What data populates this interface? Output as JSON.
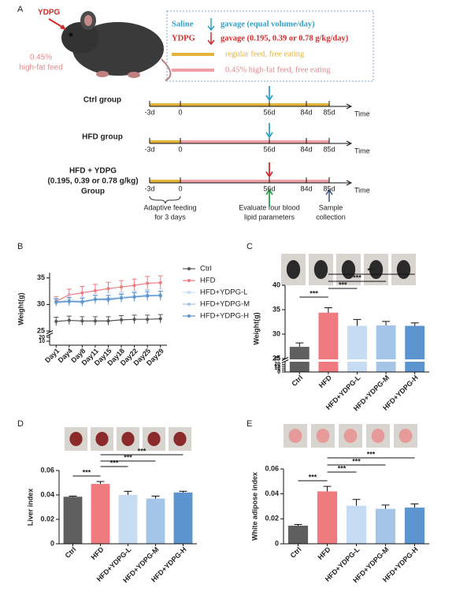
{
  "panel_a": {
    "label": "A",
    "ydpg_tag": "YDPG",
    "feed_tag": [
      "0.45%",
      "high-fat feed"
    ],
    "legend": {
      "saline": "Saline",
      "saline_text": "gavage (equal volume/day)",
      "ydpg": "YDPG",
      "ydpg_text": "gavage (0.195, 0.39 or 0.78 g/kg/day)",
      "regular": "regular feed, free eating",
      "hfd": "0.45% high-fat feed, free eating"
    },
    "groups": [
      {
        "name": [
          "Ctrl group"
        ]
      },
      {
        "name": [
          "HFD group"
        ]
      },
      {
        "name": [
          "HFD + YDPG",
          "(0.195, 0.39 or 0.78 g/kg)",
          "Group"
        ]
      }
    ],
    "timeline_ticks": [
      "-3d",
      "0",
      "56d",
      "84d",
      "85d"
    ],
    "time_label": "Time",
    "notes": [
      [
        "Adaptive feeding",
        "for 3 days"
      ],
      [
        "Evaluate four blood",
        "lipid parameters"
      ],
      [
        "Sample",
        "collection"
      ]
    ]
  },
  "chart_data": [
    {
      "type": "line",
      "label": "B",
      "ylabel": "Weight(g)",
      "categories": [
        "Day1",
        "Day4",
        "Day8",
        "Day11",
        "Day15",
        "Day18",
        "Day22",
        "Day25",
        "Day29"
      ],
      "series": [
        {
          "name": "Ctrl",
          "color": "#555555",
          "values": [
            26.8,
            27.0,
            26.9,
            26.9,
            26.9,
            27.1,
            27.2,
            27.2,
            27.3
          ],
          "errors": [
            0.8,
            0.8,
            0.8,
            0.8,
            0.8,
            0.8,
            0.8,
            0.8,
            0.8
          ]
        },
        {
          "name": "HFD",
          "color": "#ef7a80",
          "values": [
            30.6,
            31.8,
            32.2,
            32.6,
            33.0,
            33.3,
            33.6,
            34.0,
            34.1
          ],
          "errors": [
            0.9,
            1.1,
            1.2,
            1.2,
            1.2,
            1.2,
            1.2,
            1.3,
            1.3
          ]
        },
        {
          "name": "HFD+YDPG-L",
          "color": "#c6dcf2",
          "values": [
            30.4,
            30.9,
            30.6,
            31.0,
            31.2,
            31.4,
            31.6,
            31.7,
            31.9
          ],
          "errors": [
            0.8,
            0.9,
            0.9,
            1.0,
            1.0,
            1.0,
            1.0,
            1.1,
            1.1
          ]
        },
        {
          "name": "HFD+YDPG-M",
          "color": "#a4c4e8",
          "values": [
            30.3,
            30.5,
            30.4,
            30.9,
            30.8,
            31.2,
            31.5,
            31.8,
            31.6
          ],
          "errors": [
            0.7,
            0.8,
            0.8,
            0.8,
            0.9,
            0.9,
            0.9,
            0.9,
            0.9
          ]
        },
        {
          "name": "HFD+YDPG-H",
          "color": "#5b94cf",
          "values": [
            30.5,
            30.6,
            30.5,
            31.0,
            31.0,
            31.2,
            31.4,
            31.6,
            31.7
          ],
          "errors": [
            0.6,
            0.7,
            0.7,
            0.7,
            0.7,
            0.7,
            0.8,
            0.8,
            0.8
          ]
        }
      ],
      "ylim": [
        25,
        36
      ],
      "yticks": [
        25,
        30,
        35
      ],
      "lower_ylim": [
        0,
        22
      ],
      "lower_yticks": [
        10,
        20
      ]
    },
    {
      "type": "bar",
      "label": "C",
      "ylabel": "Weight(g)",
      "categories": [
        "Ctrl",
        "HFD",
        "HFD+YDPG-L",
        "HFD+YDPG-M",
        "HFD+YDPG-H"
      ],
      "values": [
        27.4,
        34.4,
        31.7,
        31.8,
        31.7
      ],
      "errors": [
        0.8,
        1.0,
        1.3,
        0.8,
        0.6
      ],
      "colors": [
        "#5f5f5f",
        "#ef7a80",
        "#c6dcf2",
        "#a4c4e8",
        "#5b94cf"
      ],
      "ylim": [
        25,
        40
      ],
      "yticks": [
        25,
        30,
        35,
        40
      ],
      "lower_ylim": [
        0,
        25
      ],
      "lower_yticks": [
        0,
        5,
        10,
        15,
        20,
        25
      ],
      "significance": [
        {
          "groups": [
            "Ctrl",
            "HFD"
          ],
          "label": "***"
        },
        {
          "groups": [
            "HFD",
            "HFD+YDPG-L"
          ],
          "label": "***"
        },
        {
          "groups": [
            "HFD",
            "HFD+YDPG-M"
          ],
          "label": "***"
        },
        {
          "groups": [
            "HFD",
            "HFD+YDPG-H"
          ],
          "label": "***"
        }
      ]
    },
    {
      "type": "bar",
      "label": "D",
      "ylabel": "Liver index",
      "categories": [
        "Ctrl",
        "HFD",
        "HFD+YDPG-L",
        "HFD+YDPG-M",
        "HFD+YDPG-H"
      ],
      "values": [
        0.0385,
        0.049,
        0.04,
        0.037,
        0.042
      ],
      "errors": [
        0.0005,
        0.002,
        0.003,
        0.002,
        0.001
      ],
      "colors": [
        "#5f5f5f",
        "#ef7a80",
        "#c6dcf2",
        "#a4c4e8",
        "#5b94cf"
      ],
      "ylim": [
        0,
        0.06
      ],
      "yticks": [
        0,
        0.02,
        0.04,
        0.06
      ],
      "significance": [
        {
          "groups": [
            "Ctrl",
            "HFD"
          ],
          "label": "***"
        },
        {
          "groups": [
            "HFD",
            "HFD+YDPG-L"
          ],
          "label": "***"
        },
        {
          "groups": [
            "HFD",
            "HFD+YDPG-M"
          ],
          "label": "***"
        },
        {
          "groups": [
            "HFD",
            "HFD+YDPG-H"
          ],
          "label": "***"
        }
      ]
    },
    {
      "type": "bar",
      "label": "E",
      "ylabel": "White adipose index",
      "categories": [
        "Ctrl",
        "HFD",
        "HFD+YDPG-L",
        "HFD+YDPG-M",
        "HFD+YDPG-H"
      ],
      "values": [
        0.0145,
        0.042,
        0.0305,
        0.028,
        0.029
      ],
      "errors": [
        0.001,
        0.004,
        0.005,
        0.003,
        0.003
      ],
      "colors": [
        "#5f5f5f",
        "#ef7a80",
        "#c6dcf2",
        "#a4c4e8",
        "#5b94cf"
      ],
      "ylim": [
        0,
        0.06
      ],
      "yticks": [
        0,
        0.02,
        0.04,
        0.06
      ],
      "significance": [
        {
          "groups": [
            "Ctrl",
            "HFD"
          ],
          "label": "***"
        },
        {
          "groups": [
            "HFD",
            "HFD+YDPG-L"
          ],
          "label": "***"
        },
        {
          "groups": [
            "HFD",
            "HFD+YDPG-M"
          ],
          "label": "***"
        },
        {
          "groups": [
            "HFD",
            "HFD+YDPG-H"
          ],
          "label": "***"
        }
      ]
    }
  ]
}
